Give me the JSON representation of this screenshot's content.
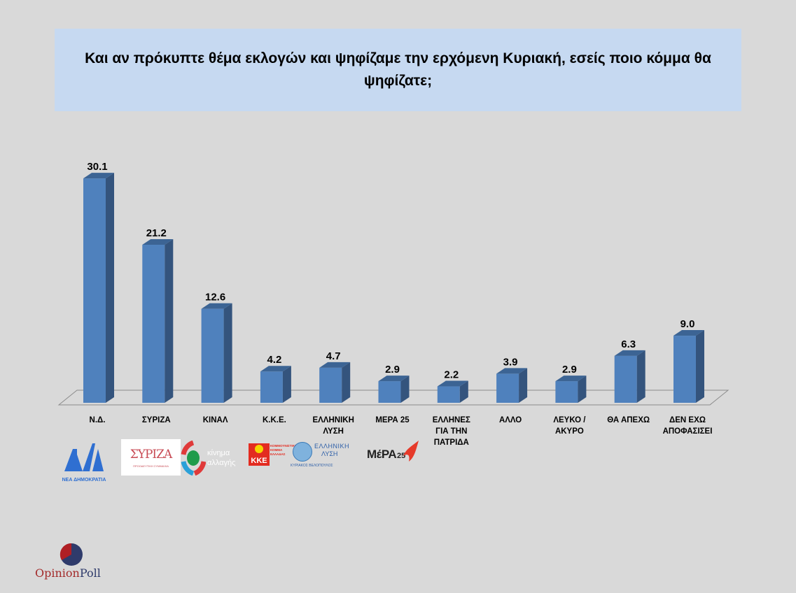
{
  "header": {
    "title": "Και αν πρόκυπτε θέμα εκλογών και ψηφίζαμε την ερχόμενη Κυριακή, εσείς ποιο κόμμα θα ψηφίζατε;"
  },
  "colors": {
    "background": "#d9d9d9",
    "title_box": "#c6d9f1",
    "bar_front": "#4f81bd",
    "bar_side": "#34547d",
    "bar_top": "#3c6494"
  },
  "chart_data": {
    "type": "bar",
    "title": "Και αν πρόκυπτε θέμα εκλογών και ψηφίζαμε την ερχόμενη Κυριακή, εσείς ποιο κόμμα θα ψηφίζατε;",
    "categories": [
      "Ν.Δ.",
      "ΣΥΡΙΖΑ",
      "ΚΙΝΑΛ",
      "Κ.Κ.Ε.",
      "ΕΛΛΗΝΙΚΗ ΛΥΣΗ",
      "ΜΕΡΑ 25",
      "ΕΛΛΗΝΕΣ ΓΙΑ ΤΗΝ ΠΑΤΡΙΔΑ",
      "ΑΛΛΟ",
      "ΛΕΥΚΟ / ΑΚΥΡΟ",
      "ΘΑ ΑΠΕΧΩ",
      "ΔΕΝ ΕΧΩ ΑΠΟΦΑΣΙΣΕΙ"
    ],
    "values": [
      30.1,
      21.2,
      12.6,
      4.2,
      4.7,
      2.9,
      2.2,
      3.9,
      2.9,
      6.3,
      9.0
    ],
    "value_labels": [
      "30.1",
      "21.2",
      "12.6",
      "4.2",
      "4.7",
      "2.9",
      "2.2",
      "3.9",
      "2.9",
      "6.3",
      "9.0"
    ],
    "xlabel": "",
    "ylabel": "",
    "ylim": [
      0,
      32
    ],
    "grid": false,
    "legend": "none",
    "style": "3d-column"
  },
  "categories_display": [
    {
      "lines": [
        "Ν.Δ."
      ]
    },
    {
      "lines": [
        "ΣΥΡΙΖΑ"
      ]
    },
    {
      "lines": [
        "ΚΙΝΑΛ"
      ]
    },
    {
      "lines": [
        "Κ.Κ.Ε."
      ]
    },
    {
      "lines": [
        "ΕΛΛΗΝΙΚΗ",
        "ΛΥΣΗ"
      ]
    },
    {
      "lines": [
        "ΜΕΡΑ 25"
      ]
    },
    {
      "lines": [
        "ΕΛΛΗΝΕΣ",
        "ΓΙΑ ΤΗΝ",
        "ΠΑΤΡΙΔΑ"
      ]
    },
    {
      "lines": [
        "ΑΛΛΟ"
      ]
    },
    {
      "lines": [
        "ΛΕΥΚΟ /",
        "ΑΚΥΡΟ"
      ]
    },
    {
      "lines": [
        "ΘΑ ΑΠΕΧΩ"
      ]
    },
    {
      "lines": [
        "ΔΕΝ ΕΧΩ",
        "ΑΠΟΦΑΣΙΣΕΙ"
      ]
    }
  ],
  "logos": {
    "nd": {
      "mark": "ΝΔ",
      "caption": "ΝΕΑ ΔΗΜΟΚΡΑΤΙΑ"
    },
    "syriza": {
      "mark": "ΣΥΡΙΖΑ",
      "caption": "ΠΡΟΟΔΕΥΤΙΚΗ ΣΥΜΜΑΧΙΑ"
    },
    "kinal": {
      "line1": "κίνημα",
      "line2": "αλλαγής"
    },
    "kke": {
      "mark": "ΚΚΕ",
      "caption": "ΚΟΜΜΟΥΝΙΣΤΙΚΟ ΚΟΜΜΑ ΕΛΛΑΔΑΣ"
    },
    "elliniki_lysi": {
      "line1": "ΕΛΛΗΝΙΚΗ",
      "line2": "ΛΥΣΗ",
      "caption": "ΚΥΡΙΑΚΟΣ ΒΕΛΟΠΟΥΛΟΣ"
    },
    "mera25": {
      "mark": "ΜέΡΑ",
      "num": "25"
    }
  },
  "brand": {
    "part1": "Opinion",
    "part2": "Poll"
  }
}
